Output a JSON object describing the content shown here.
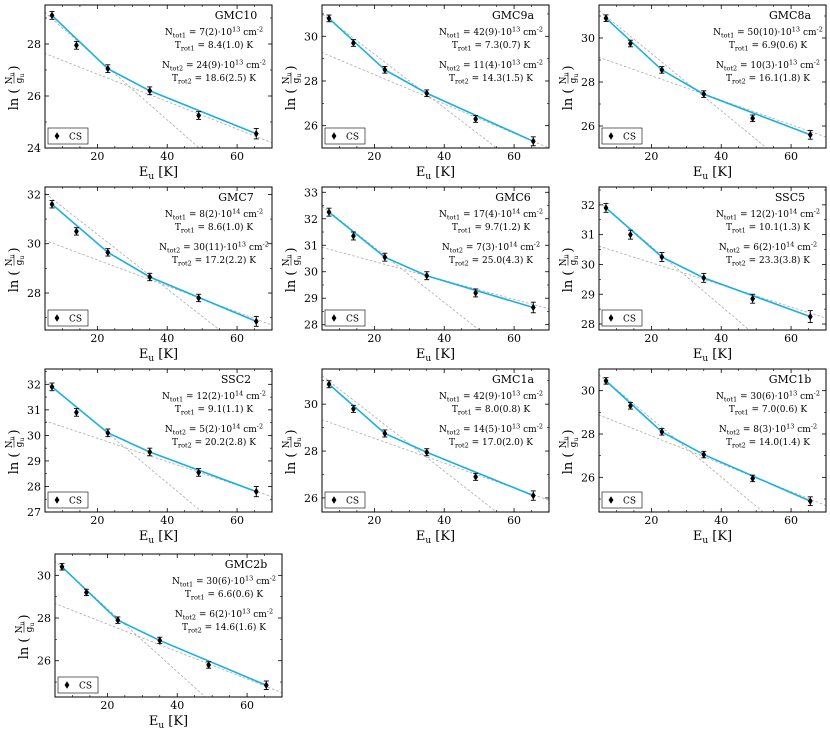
{
  "xlabel": "E",
  "xlabel_sub": "u",
  "xlabel_unit": "[K]",
  "ylabel_pre": "ln",
  "ylabel_num": "N",
  "ylabel_num_sub": "u",
  "ylabel_den": "g",
  "ylabel_den_sub": "u",
  "legend_label": "CS",
  "colors": {
    "fit": "#1ab0e0",
    "component": "#aaaaaa",
    "points": "#000000"
  },
  "chart_data": [
    {
      "type": "scatter",
      "name": "GMC10",
      "x": [
        7,
        14,
        23,
        35,
        49,
        65.5
      ],
      "y": [
        29.1,
        27.95,
        27.05,
        26.2,
        25.25,
        24.55
      ],
      "yerr": [
        0.15,
        0.15,
        0.15,
        0.15,
        0.15,
        0.2
      ],
      "xlim": [
        5,
        70
      ],
      "ylim": [
        24,
        29.5
      ],
      "xticks": [
        20,
        40,
        60
      ],
      "yticks": [
        24,
        26,
        28
      ],
      "fit": [
        [
          7,
          29.1
        ],
        [
          23,
          27.05
        ],
        [
          35,
          26.2
        ],
        [
          65.5,
          24.55
        ]
      ],
      "comp1": [
        [
          0,
          29.8
        ],
        [
          50,
          23.9
        ]
      ],
      "comp2": [
        [
          0,
          27.9
        ],
        [
          70,
          24.2
        ]
      ],
      "annotations": [
        {
          "lines": [
            "GMC10"
          ]
        },
        {
          "lines": [
            "N_tot1 = 7(2)·10^13 cm^-2",
            "T_rot1 = 8.4(1.0) K"
          ]
        },
        {
          "lines": [
            "N_tot2 = 24(9)·10^13 cm^-2",
            "T_rot2 = 18.6(2.5) K"
          ]
        }
      ]
    },
    {
      "type": "scatter",
      "name": "GMC9a",
      "x": [
        7,
        14,
        23,
        35,
        49,
        65.5
      ],
      "y": [
        30.8,
        29.7,
        28.5,
        27.45,
        26.3,
        25.3
      ],
      "yerr": [
        0.15,
        0.15,
        0.15,
        0.15,
        0.15,
        0.2
      ],
      "xlim": [
        5,
        70
      ],
      "ylim": [
        25,
        31.4
      ],
      "xticks": [
        20,
        40,
        60
      ],
      "yticks": [
        26,
        28,
        30
      ],
      "fit": [
        [
          7,
          30.8
        ],
        [
          23,
          28.5
        ],
        [
          35,
          27.45
        ],
        [
          65.5,
          25.3
        ]
      ],
      "comp1": [
        [
          0,
          31.6
        ],
        [
          55,
          25
        ]
      ],
      "comp2": [
        [
          0,
          29.6
        ],
        [
          70,
          25.0
        ]
      ],
      "annotations": [
        {
          "lines": [
            "GMC9a"
          ]
        },
        {
          "lines": [
            "N_tot1 = 42(9)·10^13 cm^-2",
            "T_rot1 = 7.3(0.7) K"
          ]
        },
        {
          "lines": [
            "N_tot2 = 11(4)·10^13 cm^-2",
            "T_rot2 = 14.3(1.5) K"
          ]
        }
      ]
    },
    {
      "type": "scatter",
      "name": "GMC8a",
      "x": [
        7,
        14,
        23,
        35,
        49,
        65.5
      ],
      "y": [
        30.9,
        29.75,
        28.55,
        27.45,
        26.35,
        25.6
      ],
      "yerr": [
        0.15,
        0.15,
        0.15,
        0.15,
        0.15,
        0.2
      ],
      "xlim": [
        5,
        70
      ],
      "ylim": [
        25,
        31.5
      ],
      "xticks": [
        20,
        40,
        60
      ],
      "yticks": [
        26,
        28,
        30
      ],
      "fit": [
        [
          7,
          30.9
        ],
        [
          23,
          28.55
        ],
        [
          35,
          27.45
        ],
        [
          65.5,
          25.6
        ]
      ],
      "comp1": [
        [
          0,
          31.9
        ],
        [
          53,
          25
        ]
      ],
      "comp2": [
        [
          0,
          29.4
        ],
        [
          70,
          25.5
        ]
      ],
      "annotations": [
        {
          "lines": [
            "GMC8a"
          ]
        },
        {
          "lines": [
            "N_tot1 = 50(10)·10^13 cm^-2",
            "T_rot1 = 6.9(0.6) K"
          ]
        },
        {
          "lines": [
            "N_tot2 = 10(3)·10^13 cm^-2",
            "T_rot2 = 16.1(1.8) K"
          ]
        }
      ]
    },
    {
      "type": "scatter",
      "name": "GMC7",
      "x": [
        7,
        14,
        23,
        35,
        49,
        65.5
      ],
      "y": [
        31.6,
        30.5,
        29.65,
        28.65,
        27.8,
        26.85
      ],
      "yerr": [
        0.15,
        0.15,
        0.15,
        0.15,
        0.15,
        0.2
      ],
      "xlim": [
        5,
        70
      ],
      "ylim": [
        26.5,
        32.3
      ],
      "xticks": [
        20,
        40,
        60
      ],
      "yticks": [
        28,
        30,
        32
      ],
      "fit": [
        [
          7,
          31.6
        ],
        [
          23,
          29.65
        ],
        [
          35,
          28.65
        ],
        [
          65.5,
          26.85
        ]
      ],
      "comp1": [
        [
          0,
          32.6
        ],
        [
          55,
          26.5
        ]
      ],
      "comp2": [
        [
          0,
          30.4
        ],
        [
          70,
          26.7
        ]
      ],
      "annotations": [
        {
          "lines": [
            "GMC7"
          ]
        },
        {
          "lines": [
            "N_tot1 = 8(2)·10^14 cm^-2",
            "T_rot1 = 8.6(1.0) K"
          ]
        },
        {
          "lines": [
            "N_tot2 = 30(11)·10^13 cm^-2",
            "T_rot2 = 17.2(2.2) K"
          ]
        }
      ]
    },
    {
      "type": "scatter",
      "name": "GMC6",
      "x": [
        7,
        14,
        23,
        35,
        49,
        65.5
      ],
      "y": [
        32.25,
        31.35,
        30.55,
        29.85,
        29.2,
        28.65
      ],
      "yerr": [
        0.15,
        0.15,
        0.15,
        0.15,
        0.15,
        0.2
      ],
      "xlim": [
        5,
        70
      ],
      "ylim": [
        27.8,
        33.2
      ],
      "xticks": [
        20,
        40,
        60
      ],
      "yticks": [
        28,
        29,
        30,
        31,
        32,
        33
      ],
      "fit": [
        [
          7,
          32.25
        ],
        [
          23,
          30.55
        ],
        [
          35,
          29.85
        ],
        [
          65.5,
          28.65
        ]
      ],
      "comp1": [
        [
          0,
          33.0
        ],
        [
          50,
          27.8
        ]
      ],
      "comp2": [
        [
          0,
          31.1
        ],
        [
          70,
          28.6
        ]
      ],
      "annotations": [
        {
          "lines": [
            "GMC6"
          ]
        },
        {
          "lines": [
            "N_tot1 = 17(4)·10^14 cm^-2",
            "T_rot1 = 9.7(1.2) K"
          ]
        },
        {
          "lines": [
            "N_tot2 = 7(3)·10^14 cm^-2",
            "T_rot2 = 25.0(4.3) K"
          ]
        }
      ]
    },
    {
      "type": "scatter",
      "name": "SSC5",
      "x": [
        7,
        14,
        23,
        35,
        49,
        65.5
      ],
      "y": [
        31.9,
        31.0,
        30.25,
        29.55,
        28.85,
        28.25
      ],
      "yerr": [
        0.15,
        0.15,
        0.15,
        0.15,
        0.15,
        0.2
      ],
      "xlim": [
        5,
        70
      ],
      "ylim": [
        27.8,
        32.6
      ],
      "xticks": [
        20,
        40,
        60
      ],
      "yticks": [
        28,
        29,
        30,
        31,
        32
      ],
      "fit": [
        [
          7,
          31.9
        ],
        [
          23,
          30.25
        ],
        [
          35,
          29.55
        ],
        [
          65.5,
          28.25
        ]
      ],
      "comp1": [
        [
          0,
          32.6
        ],
        [
          48,
          27.8
        ]
      ],
      "comp2": [
        [
          0,
          30.8
        ],
        [
          70,
          28.2
        ]
      ],
      "annotations": [
        {
          "lines": [
            "SSC5"
          ]
        },
        {
          "lines": [
            "N_tot1 = 12(2)·10^14 cm^-2",
            "T_rot1 = 10.1(1.3) K"
          ]
        },
        {
          "lines": [
            "N_tot2 = 6(2)·10^14 cm^-2",
            "T_rot2 = 23.3(3.8) K"
          ]
        }
      ]
    },
    {
      "type": "scatter",
      "name": "SSC2",
      "x": [
        7,
        14,
        23,
        35,
        49,
        65.5
      ],
      "y": [
        31.9,
        30.9,
        30.1,
        29.35,
        28.55,
        27.8
      ],
      "yerr": [
        0.15,
        0.15,
        0.15,
        0.15,
        0.15,
        0.2
      ],
      "xlim": [
        5,
        70
      ],
      "ylim": [
        27,
        32.6
      ],
      "xticks": [
        20,
        40,
        60
      ],
      "yticks": [
        27,
        28,
        29,
        30,
        31,
        32
      ],
      "fit": [
        [
          7,
          31.9
        ],
        [
          23,
          30.1
        ],
        [
          35,
          29.35
        ],
        [
          65.5,
          27.8
        ]
      ],
      "comp1": [
        [
          0,
          32.7
        ],
        [
          50,
          27
        ]
      ],
      "comp2": [
        [
          0,
          30.8
        ],
        [
          70,
          27.6
        ]
      ],
      "annotations": [
        {
          "lines": [
            "SSC2"
          ]
        },
        {
          "lines": [
            "N_tot1 = 12(2)·10^14 cm^-2",
            "T_rot1 = 9.1(1.1) K"
          ]
        },
        {
          "lines": [
            "N_tot2 = 5(2)·10^14 cm^-2",
            "T_rot2 = 20.2(2.8) K"
          ]
        }
      ]
    },
    {
      "type": "scatter",
      "name": "GMC1a",
      "x": [
        7,
        14,
        23,
        35,
        49,
        65.5
      ],
      "y": [
        30.85,
        29.8,
        28.75,
        27.95,
        26.9,
        26.1
      ],
      "yerr": [
        0.15,
        0.15,
        0.15,
        0.15,
        0.15,
        0.2
      ],
      "xlim": [
        5,
        70
      ],
      "ylim": [
        25.4,
        31.5
      ],
      "xticks": [
        20,
        40,
        60
      ],
      "yticks": [
        26,
        28,
        30
      ],
      "fit": [
        [
          7,
          30.85
        ],
        [
          23,
          28.75
        ],
        [
          35,
          27.95
        ],
        [
          65.5,
          26.1
        ]
      ],
      "comp1": [
        [
          0,
          31.8
        ],
        [
          55,
          25.4
        ]
      ],
      "comp2": [
        [
          0,
          29.6
        ],
        [
          70,
          25.9
        ]
      ],
      "annotations": [
        {
          "lines": [
            "GMC1a"
          ]
        },
        {
          "lines": [
            "N_tot1 = 42(9)·10^13 cm^-2",
            "T_rot1 = 8.0(0.8) K"
          ]
        },
        {
          "lines": [
            "N_tot2 = 14(5)·10^13 cm^-2",
            "T_rot2 = 17.0(2.0) K"
          ]
        }
      ]
    },
    {
      "type": "scatter",
      "name": "GMC1b",
      "x": [
        7,
        14,
        23,
        35,
        49,
        65.5
      ],
      "y": [
        30.45,
        29.3,
        28.1,
        27.05,
        25.95,
        24.9
      ],
      "yerr": [
        0.15,
        0.15,
        0.15,
        0.15,
        0.15,
        0.2
      ],
      "xlim": [
        5,
        70
      ],
      "ylim": [
        24.4,
        31
      ],
      "xticks": [
        20,
        40,
        60
      ],
      "yticks": [
        26,
        28,
        30
      ],
      "fit": [
        [
          7,
          30.45
        ],
        [
          23,
          28.1
        ],
        [
          35,
          27.05
        ],
        [
          65.5,
          24.9
        ]
      ],
      "comp1": [
        [
          0,
          31.4
        ],
        [
          52,
          24.4
        ]
      ],
      "comp2": [
        [
          0,
          29.2
        ],
        [
          70,
          24.7
        ]
      ],
      "annotations": [
        {
          "lines": [
            "GMC1b"
          ]
        },
        {
          "lines": [
            "N_tot1 = 30(6)·10^13 cm^-2",
            "T_rot1 = 7.0(0.6) K"
          ]
        },
        {
          "lines": [
            "N_tot2 = 8(3)·10^13 cm^-2",
            "T_rot2 = 14.0(1.4) K"
          ]
        }
      ]
    },
    {
      "type": "scatter",
      "name": "GMC2b",
      "x": [
        7,
        14,
        23,
        35,
        49,
        65.5
      ],
      "y": [
        30.4,
        29.2,
        27.9,
        26.95,
        25.8,
        24.85
      ],
      "yerr": [
        0.15,
        0.15,
        0.15,
        0.15,
        0.15,
        0.2
      ],
      "xlim": [
        5,
        70
      ],
      "ylim": [
        24.3,
        31
      ],
      "xticks": [
        20,
        40,
        60
      ],
      "yticks": [
        26,
        28,
        30
      ],
      "fit": [
        [
          7,
          30.4
        ],
        [
          23,
          27.9
        ],
        [
          35,
          26.95
        ],
        [
          65.5,
          24.85
        ]
      ],
      "comp1": [
        [
          0,
          31.4
        ],
        [
          48,
          24.3
        ]
      ],
      "comp2": [
        [
          0,
          29.0
        ],
        [
          70,
          24.5
        ]
      ],
      "annotations": [
        {
          "lines": [
            "GMC2b"
          ]
        },
        {
          "lines": [
            "N_tot1 = 30(6)·10^13 cm^-2",
            "T_rot1 = 6.6(0.6) K"
          ]
        },
        {
          "lines": [
            "N_tot2 = 6(2)·10^13 cm^-2",
            "T_rot2 = 14.6(1.6) K"
          ]
        }
      ]
    }
  ]
}
